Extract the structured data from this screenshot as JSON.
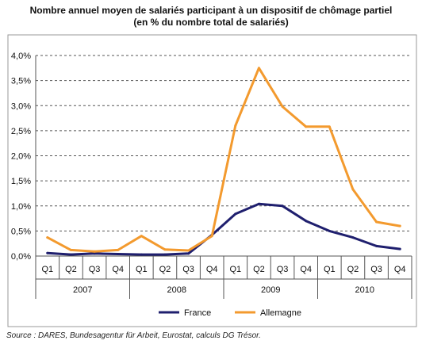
{
  "chart_data": {
    "type": "line",
    "title": "Nombre annuel moyen de salariés participant à un dispositif de chômage partiel",
    "subtitle": "(en % du nombre total de salariés)",
    "categories": [
      "Q1",
      "Q2",
      "Q3",
      "Q4",
      "Q1",
      "Q2",
      "Q3",
      "Q4",
      "Q1",
      "Q2",
      "Q3",
      "Q4",
      "Q1",
      "Q2",
      "Q3",
      "Q4"
    ],
    "years": [
      "2007",
      "2008",
      "2009",
      "2010"
    ],
    "yticks": [
      "0,0%",
      "0,5%",
      "1,0%",
      "1,5%",
      "2,0%",
      "2,5%",
      "3,0%",
      "3,5%",
      "4,0%"
    ],
    "ylim": [
      0,
      4.0
    ],
    "grid": true,
    "legend_position": "bottom",
    "series": [
      {
        "name": "France",
        "color": "#1f1f6e",
        "values": [
          0.06,
          0.03,
          0.05,
          0.04,
          0.03,
          0.03,
          0.05,
          0.42,
          0.84,
          1.04,
          1.0,
          0.7,
          0.5,
          0.37,
          0.2,
          0.14
        ]
      },
      {
        "name": "Allemagne",
        "color": "#f39a2e",
        "values": [
          0.37,
          0.12,
          0.09,
          0.12,
          0.4,
          0.13,
          0.11,
          0.4,
          2.6,
          3.75,
          2.98,
          2.58,
          2.58,
          1.33,
          0.68,
          0.6
        ]
      }
    ]
  },
  "source": "Source : DARES, Bundesagentur für Arbeit, Eurostat, calculs DG Trésor."
}
